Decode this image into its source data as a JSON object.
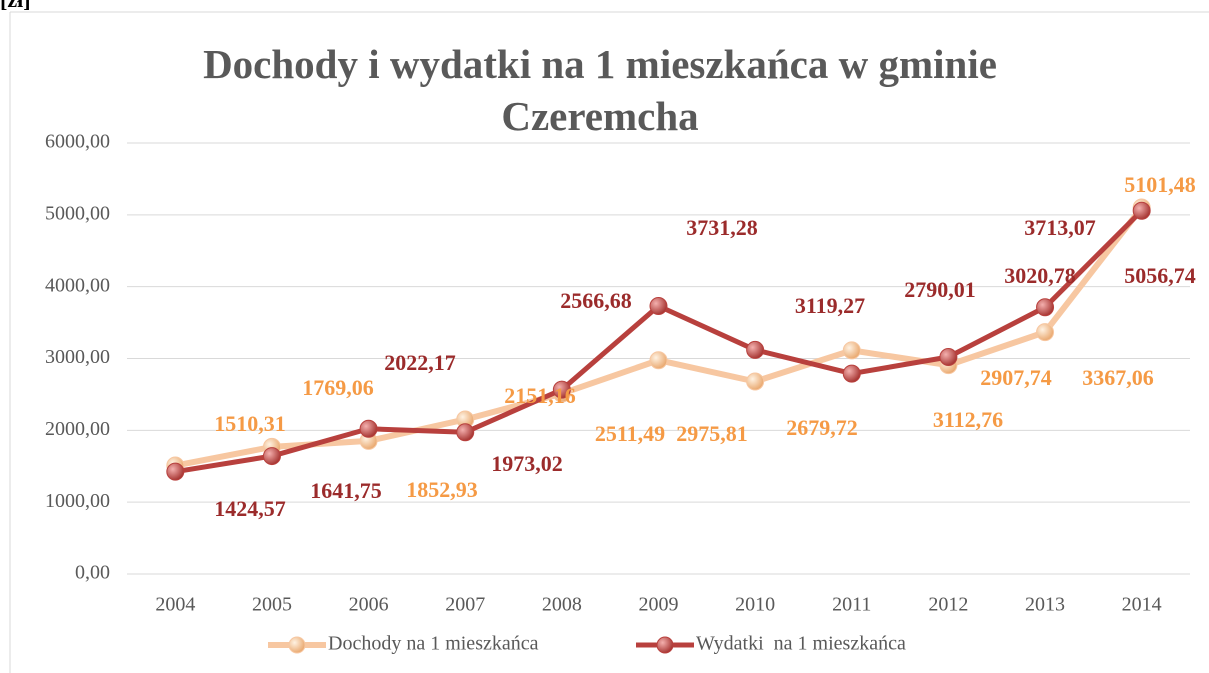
{
  "chart_data": {
    "type": "line",
    "title": "Dochody i wydatki na 1 mieszkańca w gminie Czeremcha",
    "y_axis_label": "[zł]",
    "categories": [
      "2004",
      "2005",
      "2006",
      "2007",
      "2008",
      "2009",
      "2010",
      "2011",
      "2012",
      "2013",
      "2014"
    ],
    "series": [
      {
        "name": "Dochody na 1 mieszkańca",
        "color": "#f7c7a1",
        "label_color": "#f59a45",
        "values": [
          1510.31,
          1769.06,
          1852.93,
          2151.16,
          2511.49,
          2975.81,
          2679.72,
          3112.76,
          2907.74,
          3367.06,
          5101.48
        ],
        "value_labels": [
          "1510,31",
          "1769,06",
          "1852,93",
          "2151,16",
          "2511,49",
          "2975,81",
          "2679,72",
          "3112,76",
          "2907,74",
          "3367,06",
          "5101,48"
        ]
      },
      {
        "name": "Wydatki  na 1 mieszkańca",
        "color": "#b8403d",
        "label_color": "#9b2b2b",
        "values": [
          1424.57,
          1641.75,
          2022.17,
          1973.02,
          2566.68,
          3731.28,
          3119.27,
          2790.01,
          3020.78,
          3713.07,
          5056.74
        ],
        "value_labels": [
          "1424,57",
          "1641,75",
          "2022,17",
          "1973,02",
          "2566,68",
          "3731,28",
          "3119,27",
          "2790,01",
          "3020,78",
          "3713,07",
          "5056,74"
        ]
      }
    ],
    "ylim": [
      0,
      6000
    ],
    "yticks": [
      {
        "value": 0,
        "label": "0,00"
      },
      {
        "value": 1000,
        "label": "1000,00"
      },
      {
        "value": 2000,
        "label": "2000,00"
      },
      {
        "value": 3000,
        "label": "3000,00"
      },
      {
        "value": 4000,
        "label": "4000,00"
      },
      {
        "value": 5000,
        "label": "5000,00"
      },
      {
        "value": 6000,
        "label": "6000,00"
      }
    ],
    "grid": true,
    "legend": "bottom"
  }
}
